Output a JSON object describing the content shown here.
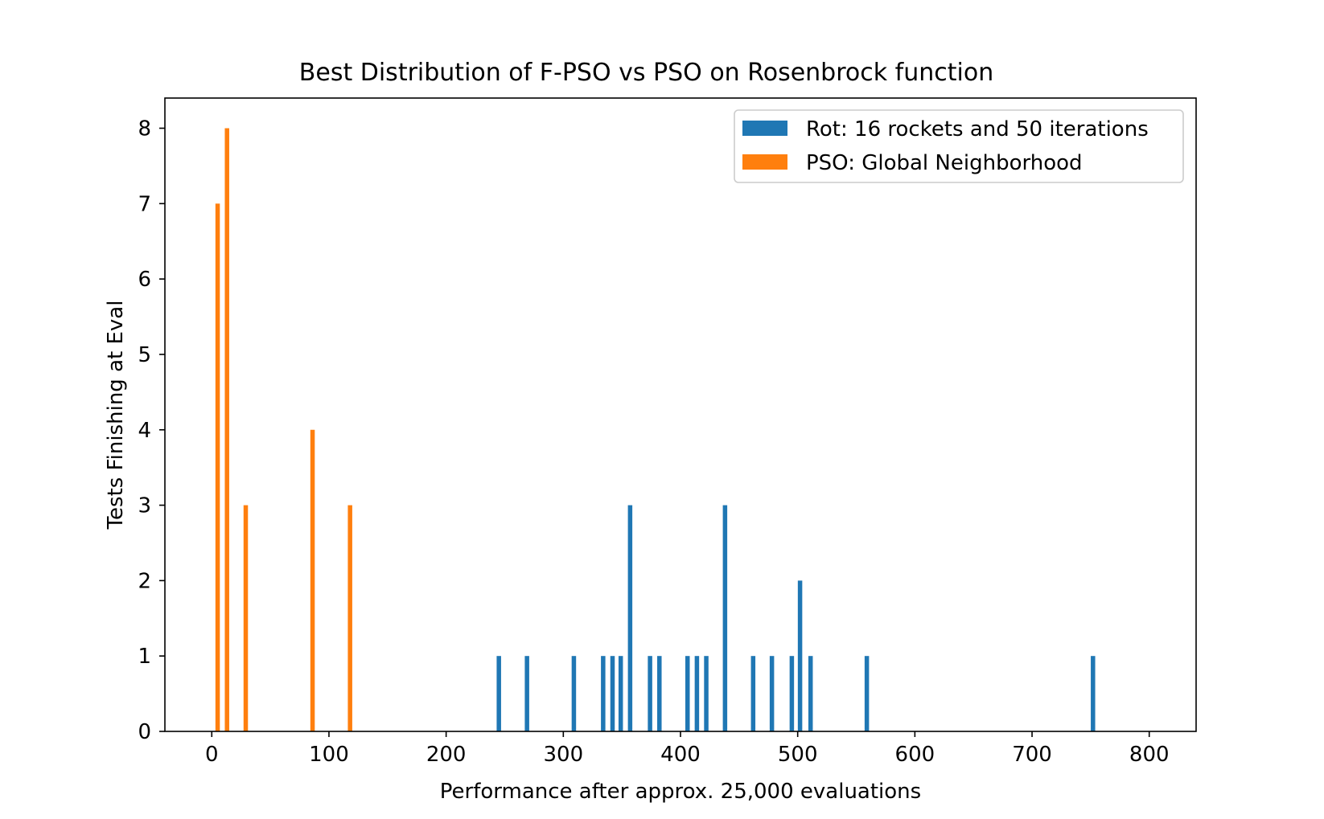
{
  "chart_data": {
    "type": "bar",
    "title": "Best Distribution of F-PSO vs PSO on Rosenbrock function",
    "xlabel": "Performance after approx. 25,000 evaluations",
    "ylabel": "Tests Finishing at Eval",
    "xlim": [
      -40,
      840
    ],
    "ylim": [
      0,
      8.4
    ],
    "xticks": [
      0,
      100,
      200,
      300,
      400,
      500,
      600,
      700,
      800
    ],
    "yticks": [
      0,
      1,
      2,
      3,
      4,
      5,
      6,
      7,
      8
    ],
    "grid": false,
    "legend_position": "upper right",
    "series": [
      {
        "name": "Rot: 16 rockets and 50 iterations",
        "color": "#1f77b4",
        "points": [
          {
            "x": 245,
            "y": 1
          },
          {
            "x": 269,
            "y": 1
          },
          {
            "x": 309,
            "y": 1
          },
          {
            "x": 334,
            "y": 1
          },
          {
            "x": 342,
            "y": 1
          },
          {
            "x": 349,
            "y": 1
          },
          {
            "x": 357,
            "y": 3
          },
          {
            "x": 374,
            "y": 1
          },
          {
            "x": 382,
            "y": 1
          },
          {
            "x": 406,
            "y": 1
          },
          {
            "x": 414,
            "y": 1
          },
          {
            "x": 422,
            "y": 1
          },
          {
            "x": 438,
            "y": 3
          },
          {
            "x": 462,
            "y": 1
          },
          {
            "x": 478,
            "y": 1
          },
          {
            "x": 495,
            "y": 1
          },
          {
            "x": 502,
            "y": 2
          },
          {
            "x": 511,
            "y": 1
          },
          {
            "x": 559,
            "y": 1
          },
          {
            "x": 752,
            "y": 1
          }
        ]
      },
      {
        "name": "PSO: Global Neighborhood",
        "color": "#ff7f0e",
        "points": [
          {
            "x": 5,
            "y": 7
          },
          {
            "x": 13,
            "y": 8
          },
          {
            "x": 29,
            "y": 3
          },
          {
            "x": 86,
            "y": 4
          },
          {
            "x": 118,
            "y": 3
          }
        ]
      }
    ]
  }
}
